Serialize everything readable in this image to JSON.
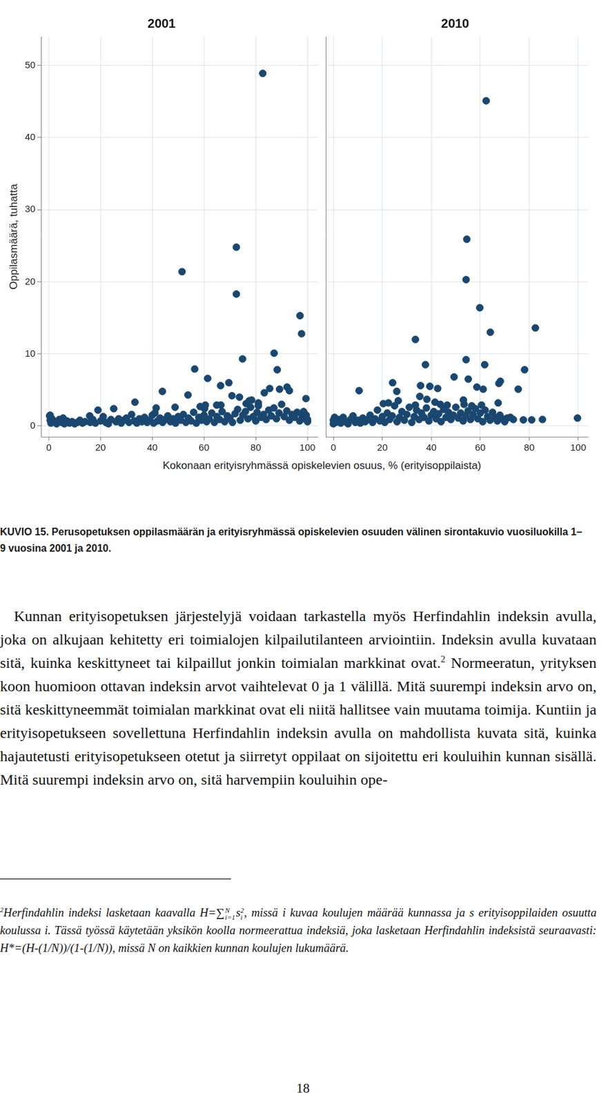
{
  "chart_data": [
    {
      "type": "scatter",
      "title": "2001",
      "y_label": "Oppilasmäärä, tuhatta",
      "color": "#1a476f",
      "marker": "circle",
      "grid": true,
      "xlim": [
        -3,
        104
      ],
      "ylim": [
        -1.5,
        54
      ],
      "xticks": [
        0,
        20,
        40,
        60,
        80,
        100
      ],
      "yticks": [
        0,
        10,
        20,
        30,
        40,
        50
      ],
      "x": [
        82.7,
        72.5,
        51.5,
        72.5,
        97.1,
        97.7,
        87.1,
        74.9,
        56.4,
        88.3,
        61.4,
        66.4,
        69.6,
        43.9,
        85.4,
        89.2,
        92.1,
        93.0,
        70.8,
        73.7,
        53.8,
        33.3,
        99.4,
        83.3,
        78.4,
        81.0,
        76.3,
        64.9,
        60.2,
        48.8,
        41.5,
        19.0,
        25.1,
        15.8,
        0.3,
        0.5,
        0.5,
        0.8,
        1.2,
        2,
        3,
        4,
        5,
        5.5,
        6,
        7,
        8,
        9,
        10,
        11,
        12,
        13,
        14,
        16,
        17,
        18,
        20,
        21,
        22,
        23,
        24,
        26,
        27,
        28,
        29,
        30,
        31,
        32,
        33,
        34,
        35,
        36,
        37,
        38,
        39,
        40,
        40.5,
        41,
        42,
        43,
        44,
        45,
        46,
        47,
        48,
        49,
        50,
        51,
        52,
        53,
        54,
        55,
        56,
        57,
        58,
        59,
        60,
        61,
        62,
        63,
        64,
        65,
        66,
        67,
        68,
        69,
        70,
        71,
        72,
        73,
        74,
        75,
        76,
        77,
        78,
        79,
        80,
        80.5,
        81,
        82,
        83,
        84,
        85,
        86,
        87,
        88,
        89,
        90,
        91,
        92,
        93,
        94,
        95,
        96,
        97,
        98,
        99,
        100,
        100,
        99.5,
        98.5,
        60.5,
        58.5,
        66.5,
        77.5
      ],
      "values": [
        48.9,
        24.8,
        21.4,
        18.3,
        15.3,
        12.8,
        10.1,
        9.3,
        7.9,
        7.8,
        6.6,
        5.6,
        6.0,
        4.8,
        5.2,
        5.1,
        5.4,
        4.9,
        4.2,
        4.0,
        4.3,
        3.3,
        3.8,
        4.6,
        3.6,
        3.2,
        3.1,
        2.9,
        2.4,
        2.6,
        2.5,
        2.2,
        2.4,
        1.4,
        1.4,
        1.5,
        0.8,
        0.4,
        1.0,
        0.6,
        0.3,
        0.9,
        0.5,
        1.1,
        0.3,
        0.7,
        0.4,
        0.6,
        0.3,
        0.5,
        0.8,
        0.4,
        0.6,
        0.5,
        0.9,
        0.4,
        0.7,
        1.3,
        0.5,
        0.3,
        0.9,
        0.6,
        1.0,
        0.4,
        0.8,
        1.1,
        0.5,
        1.6,
        0.7,
        0.4,
        1.0,
        0.6,
        1.2,
        0.5,
        0.8,
        1.5,
        0.4,
        1.8,
        0.7,
        1.1,
        0.5,
        0.9,
        1.4,
        0.6,
        1.0,
        0.4,
        1.3,
        0.8,
        1.6,
        0.5,
        1.1,
        0.7,
        1.9,
        0.4,
        1.2,
        0.8,
        1.5,
        0.6,
        1.0,
        1.8,
        0.5,
        1.3,
        0.9,
        2.0,
        0.6,
        1.4,
        1.1,
        0.5,
        1.7,
        2.3,
        0.8,
        1.5,
        2.0,
        1.0,
        2.6,
        1.3,
        0.7,
        1.9,
        2.8,
        1.2,
        1.6,
        0.9,
        2.2,
        1.4,
        2.5,
        1.0,
        1.8,
        3.0,
        1.3,
        2.1,
        0.8,
        1.6,
        1.2,
        1.9,
        0.7,
        1.4,
        1.0,
        0.6,
        0.9,
        1.5,
        2.0,
        2.9,
        2.7,
        2.9,
        3.5
      ]
    },
    {
      "type": "scatter",
      "title": "2010",
      "color": "#1a476f",
      "marker": "circle",
      "grid": true,
      "tick_labels": "x",
      "xlim": [
        -3,
        104
      ],
      "ylim": [
        -1.5,
        54
      ],
      "xticks": [
        0,
        20,
        40,
        60,
        80,
        100
      ],
      "yticks": [
        0,
        10,
        20,
        30,
        40,
        50
      ],
      "x": [
        62.4,
        54.5,
        54.2,
        59.8,
        64.1,
        82.5,
        33.5,
        37.6,
        54.2,
        61.8,
        78.1,
        49.3,
        55.1,
        67.6,
        68.2,
        24.2,
        35.6,
        39.4,
        42.6,
        61.2,
        58.6,
        75.5,
        10.5,
        25.9,
        38.2,
        53.1,
        35.3,
        67.3,
        20.4,
        53.4,
        43.7,
        99.7,
        85.4,
        81.0,
        77.6,
        73.5,
        72.3,
        0,
        0,
        0.5,
        1,
        2,
        3,
        4,
        5,
        6,
        7,
        8,
        9,
        10,
        11,
        12,
        13,
        14,
        15,
        16,
        17,
        18,
        19,
        20,
        21,
        22,
        23,
        24,
        25,
        26,
        27,
        28,
        29,
        30,
        31,
        32,
        33,
        34,
        35,
        36,
        37,
        38,
        39,
        40,
        41,
        42,
        43,
        44,
        45,
        46,
        47,
        48,
        49,
        50,
        51,
        52,
        53,
        54,
        55,
        56,
        57,
        58,
        59,
        60,
        61,
        62,
        63,
        64,
        65,
        66,
        67,
        68,
        69,
        70,
        71,
        60.5,
        56.5,
        46.5,
        33.5,
        22.5,
        26.5,
        41.5
      ],
      "values": [
        45.1,
        25.9,
        20.3,
        16.4,
        13.0,
        13.6,
        12.0,
        8.5,
        9.2,
        8.5,
        7.8,
        6.8,
        6.5,
        5.9,
        6.2,
        6.0,
        5.6,
        5.5,
        5.2,
        5.1,
        5.4,
        5.1,
        4.9,
        4.8,
        3.7,
        3.6,
        4.1,
        3.2,
        3.1,
        3.0,
        3.0,
        1.1,
        0.9,
        0.85,
        0.85,
        0.9,
        1.2,
        0.3,
        0.8,
        1.2,
        0.5,
        0.9,
        0.4,
        1.2,
        0.6,
        0.3,
        0.9,
        1.4,
        0.5,
        0.8,
        0.4,
        1.1,
        0.6,
        0.9,
        1.5,
        0.5,
        1.0,
        2.2,
        0.7,
        1.3,
        0.5,
        1.8,
        0.9,
        1.4,
        2.8,
        0.6,
        1.2,
        2.0,
        0.8,
        1.6,
        2.6,
        0.5,
        1.3,
        2.2,
        0.9,
        1.8,
        1.2,
        2.5,
        0.7,
        1.5,
        2.0,
        1.0,
        1.7,
        0.6,
        2.3,
        1.2,
        1.9,
        0.9,
        1.5,
        2.6,
        1.1,
        1.8,
        0.7,
        1.4,
        2.1,
        0.9,
        1.6,
        2.4,
        1.0,
        1.8,
        0.6,
        2.2,
        1.3,
        0.8,
        1.9,
        1.2,
        0.7,
        1.5,
        1.0,
        0.6,
        1.1,
        2.9,
        2.8,
        2.9,
        2.9,
        3.2,
        3.5,
        3.3
      ]
    }
  ],
  "figure": {
    "x_label": "Kokonaan erityisryhmässä opiskelevien osuus, % (erityisoppilaista)",
    "caption": "KUVIO 15. Perusopetuksen oppilasmäärän ja erityisryhmässä opiskelevien osuuden välinen sirontakuvio vuosiluokilla 1–9 vuosina 2001 ja 2010."
  },
  "body": {
    "before_note": "Kunnan erityisopetuksen järjestelyjä voidaan tarkastella myös Herfindahlin indeksin avulla, joka on alkujaan kehitetty eri toimialojen kilpailutilanteen arviointiin. Indeksin avulla kuvataan sitä, kuinka keskittyneet tai kilpaillut jonkin toimialan markkinat ovat.",
    "note_mark": "2",
    "after_note": " Normeeratun, yrityksen koon huomioon ottavan indeksin arvot vaihtelevat 0 ja 1 välillä. Mitä suurempi indeksin arvo on, sitä keskittyneemmät toimialan markkinat ovat eli niitä hallitsee vain muutama toimija. Kuntiin ja erityisopetukseen sovellettuna Herfindahlin indeksin avulla on mahdollista kuvata sitä, kuinka hajautetusti erityisopetukseen otetut ja siirretyt oppilaat on sijoitettu eri kouluihin kunnan sisällä. Mitä suurempi indeksin arvo on, sitä harvempiin kouluihin ope-"
  },
  "footnote": {
    "number": "2",
    "text_before": "Herfindahlin indeksi lasketaan kaavalla H=",
    "sum_sign": "∑",
    "sum_upper": "N",
    "sum_lower": "i=1",
    "term": "s",
    "term_sup": "2",
    "term_sub": "i",
    "text_after": ", missä i kuvaa koulujen määrää kunnassa ja s erityisoppilaiden osuutta koulussa i. Tässä työssä käytetään yksikön koolla normeerattua indeksiä, joka lasketaan Herfindahlin indeksistä seuraavasti: H*=(H-(1/N))/(1-(1/N)), missä N on kaikkien kunnan koulujen lukumäärä."
  },
  "page_number": "18"
}
